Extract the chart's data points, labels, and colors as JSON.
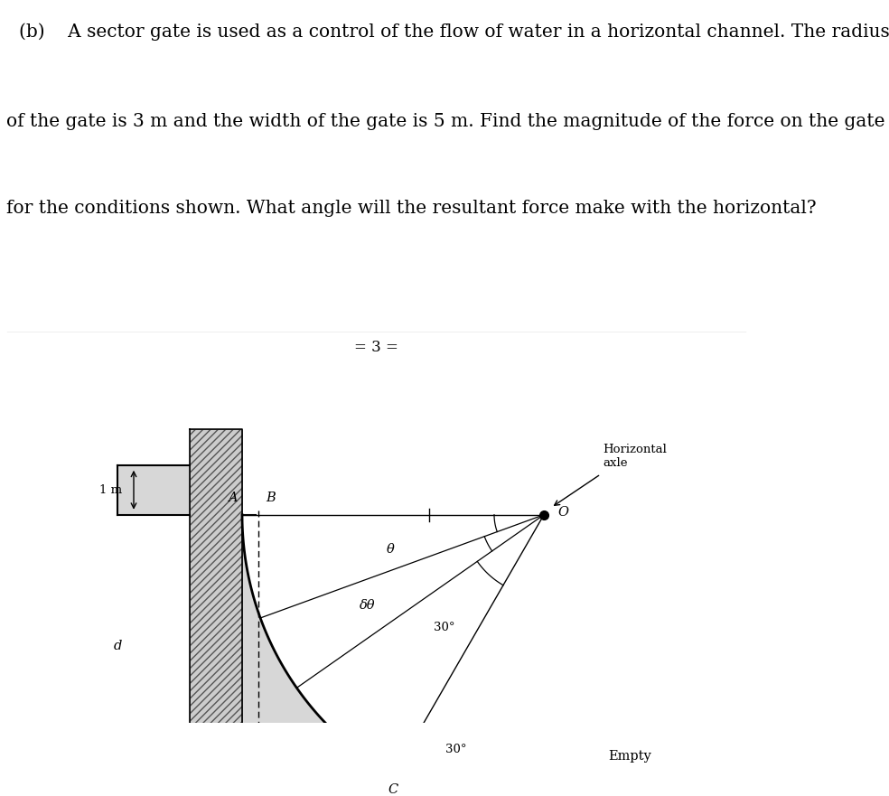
{
  "title_line1": "(b)    A sector gate is used as a control of the flow of water in a horizontal channel. The radius",
  "title_line2": "of the gate is 3 m and the width of the gate is 5 m. Find the magnitude of the force on the gate",
  "title_line3": "for the conditions shown. What angle will the resultant force make with the horizontal?",
  "center_label": "= 3 =",
  "label_1m": "1 m",
  "label_d": "d",
  "label_theta": "θ",
  "label_delta_theta": "δθ",
  "label_30_bottom": "30°",
  "label_30_right": "30°",
  "label_A": "A",
  "label_B": "B",
  "label_O": "O",
  "label_C": "C",
  "label_horiz_axle": "Horizontal\naxle",
  "label_empty": "Empty",
  "bg_color": "#ffffff",
  "text_fontsize": 14.5,
  "diagram_fontsize": 9.5
}
